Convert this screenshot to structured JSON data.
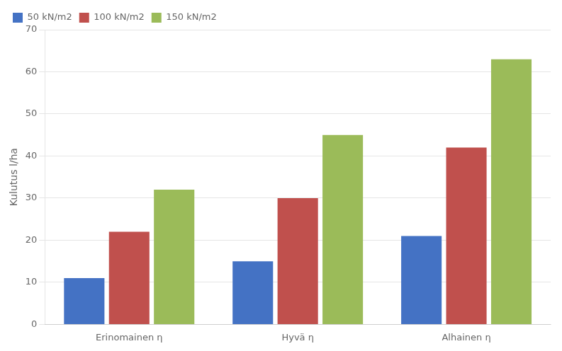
{
  "chart_data": {
    "type": "bar",
    "categories": [
      "Erinomainen η",
      "Hyvä η",
      "Alhainen η"
    ],
    "series": [
      {
        "name": "50 kN/m2",
        "color": "#4472C4",
        "values": [
          11,
          15,
          21
        ]
      },
      {
        "name": "100 kN/m2",
        "color": "#C0504D",
        "values": [
          22,
          30,
          42
        ]
      },
      {
        "name": "150 kN/m2",
        "color": "#9BBB59",
        "values": [
          32,
          45,
          63
        ]
      }
    ],
    "ylabel": "Kulutus l/ha",
    "ylim": [
      0,
      70
    ],
    "yticks": [
      0,
      10,
      20,
      30,
      40,
      50,
      60,
      70
    ],
    "grid": true,
    "legend": "upper left"
  }
}
